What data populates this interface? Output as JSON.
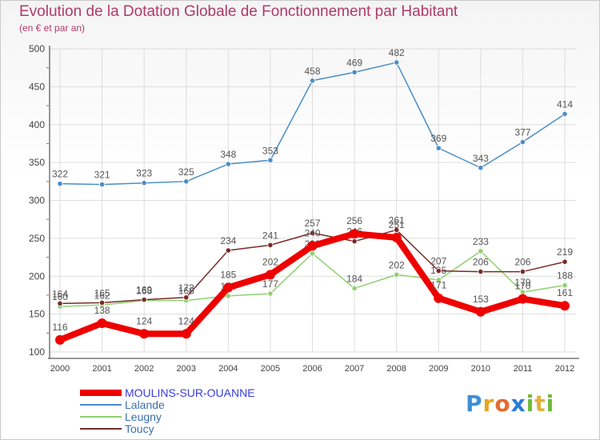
{
  "title": "Evolution de la Dotation Globale de Fonctionnement par Habitant",
  "subtitle": "(en € et par an)",
  "logo_text": "Proxiti",
  "chart_data": {
    "type": "line",
    "title": "Evolution de la Dotation Globale de Fonctionnement par Habitant",
    "subtitle": "(en € et par an)",
    "x": [
      "2000",
      "2001",
      "2002",
      "2003",
      "2004",
      "2005",
      "2006",
      "2007",
      "2008",
      "2009",
      "2010",
      "2011",
      "2012"
    ],
    "ylim": [
      100,
      500
    ],
    "yticks": [
      100,
      150,
      200,
      250,
      300,
      350,
      400,
      450,
      500
    ],
    "grid": true,
    "legend_position": "bottom-left",
    "series": [
      {
        "name": "MOULINS-SUR-OUANNE",
        "color": "#ee0000",
        "values": [
          116,
          138,
          124,
          124,
          185,
          202,
          240,
          256,
          251,
          171,
          153,
          170,
          161
        ]
      },
      {
        "name": "Lalande",
        "color": "#4a8ec8",
        "values": [
          322,
          321,
          323,
          325,
          348,
          353,
          458,
          469,
          482,
          369,
          343,
          377,
          414
        ]
      },
      {
        "name": "Leugny",
        "color": "#90d070",
        "values": [
          160,
          162,
          168,
          168,
          174,
          177,
          230,
          184,
          202,
          195,
          233,
          179,
          188
        ]
      },
      {
        "name": "Toucy",
        "color": "#7a2a2a",
        "values": [
          164,
          165,
          169,
          172,
          234,
          241,
          257,
          246,
          261,
          207,
          206,
          206,
          219
        ]
      }
    ]
  }
}
